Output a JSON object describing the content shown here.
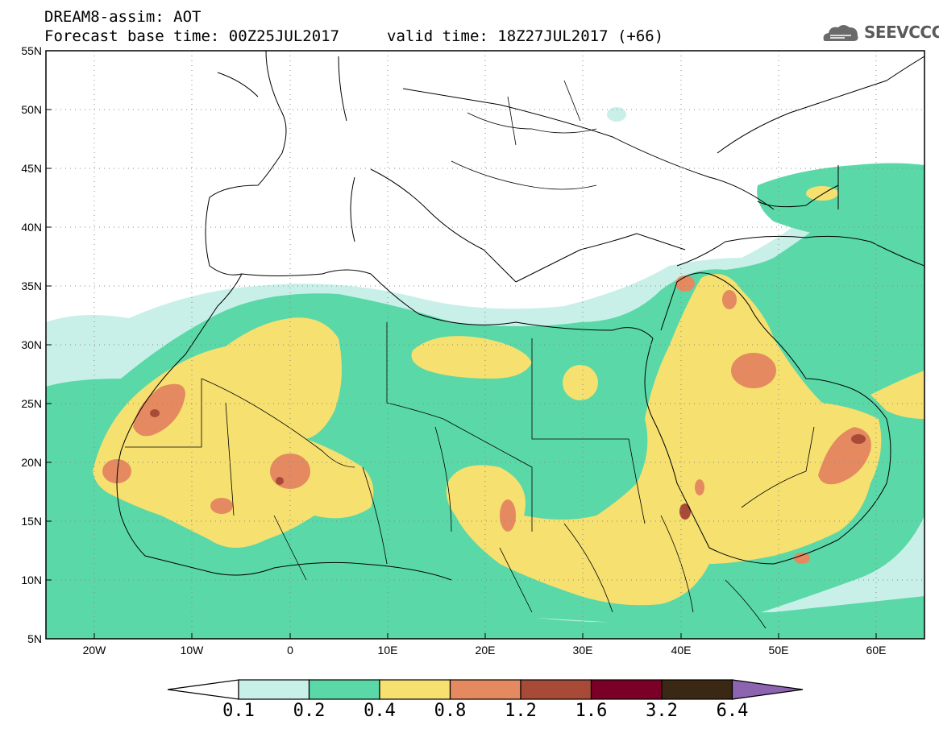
{
  "header": {
    "title": "DREAM8-assim: AOT",
    "base_time": "Forecast base time: 00Z25JUL2017",
    "valid_time": "valid time: 18Z27JUL2017 (+66)",
    "logo_text": "SEEVCCC"
  },
  "map": {
    "lat_labels": [
      "55N",
      "50N",
      "45N",
      "40N",
      "35N",
      "30N",
      "25N",
      "20N",
      "15N",
      "10N",
      "5N"
    ],
    "lon_labels": [
      "20W",
      "10W",
      "0",
      "10E",
      "20E",
      "30E",
      "40E",
      "50E",
      "60E"
    ],
    "lon_range": [
      -25,
      65
    ],
    "lat_range": [
      5,
      55
    ],
    "grid": "dotted"
  },
  "colorbar": {
    "labels": [
      "0.1",
      "0.2",
      "0.4",
      "0.8",
      "1.2",
      "1.6",
      "3.2",
      "6.4"
    ],
    "colors": [
      "#c8f0e8",
      "#5ad8a8",
      "#f5e070",
      "#e58a60",
      "#a84a38",
      "#7a0028",
      "#3a2814",
      "#8c64b0"
    ]
  }
}
